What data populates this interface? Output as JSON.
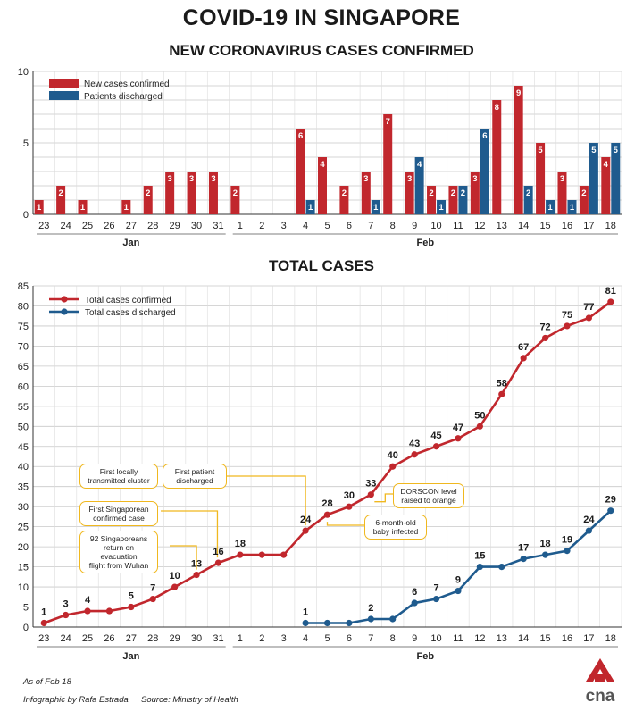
{
  "title": "COVID-19 IN SINGAPORE",
  "subtitle_new": "NEW CORONAVIRUS CASES CONFIRMED",
  "subtitle_total": "TOTAL CASES",
  "colors": {
    "confirmed": "#c1272d",
    "discharged": "#1f5b8e",
    "annotation": "#f0b81f",
    "grid": "#c8c8c8"
  },
  "chart_data": [
    {
      "type": "bar",
      "title": "NEW CORONAVIRUS CASES CONFIRMED",
      "categories": [
        "23",
        "24",
        "25",
        "26",
        "27",
        "28",
        "29",
        "30",
        "31",
        "1",
        "2",
        "3",
        "4",
        "5",
        "6",
        "7",
        "8",
        "9",
        "10",
        "11",
        "12",
        "13",
        "14",
        "15",
        "16",
        "17",
        "18"
      ],
      "month_labels": [
        {
          "label": "Jan",
          "from": 0,
          "to": 8
        },
        {
          "label": "Feb",
          "from": 9,
          "to": 26
        }
      ],
      "series": [
        {
          "name": "New cases confirmed",
          "values": [
            1,
            2,
            1,
            0,
            1,
            2,
            3,
            3,
            3,
            2,
            0,
            0,
            6,
            4,
            2,
            3,
            7,
            3,
            2,
            2,
            3,
            8,
            9,
            5,
            3,
            2,
            4
          ]
        },
        {
          "name": "Patients discharged",
          "values": [
            0,
            0,
            0,
            0,
            0,
            0,
            0,
            0,
            0,
            0,
            0,
            0,
            1,
            0,
            0,
            1,
            0,
            4,
            1,
            2,
            6,
            0,
            2,
            1,
            1,
            5,
            5
          ]
        }
      ],
      "yticks": [
        0,
        5,
        10
      ],
      "ylim": [
        0,
        10
      ],
      "legend": "top-left",
      "grid": true
    },
    {
      "type": "line",
      "title": "TOTAL CASES",
      "categories": [
        "23",
        "24",
        "25",
        "26",
        "27",
        "28",
        "29",
        "30",
        "31",
        "1",
        "2",
        "3",
        "4",
        "5",
        "6",
        "7",
        "8",
        "9",
        "10",
        "11",
        "12",
        "13",
        "14",
        "15",
        "16",
        "17",
        "18"
      ],
      "month_labels": [
        {
          "label": "Jan",
          "from": 0,
          "to": 8
        },
        {
          "label": "Feb",
          "from": 9,
          "to": 26
        }
      ],
      "series": [
        {
          "name": "Total cases confirmed",
          "values": [
            1,
            3,
            4,
            4,
            5,
            7,
            10,
            13,
            16,
            18,
            18,
            18,
            24,
            28,
            30,
            33,
            40,
            43,
            45,
            47,
            50,
            58,
            67,
            72,
            75,
            77,
            81
          ]
        },
        {
          "name": "Total cases discharged",
          "values": [
            null,
            null,
            null,
            null,
            null,
            null,
            null,
            null,
            null,
            null,
            null,
            null,
            1,
            1,
            1,
            2,
            2,
            6,
            7,
            9,
            15,
            15,
            17,
            18,
            19,
            24,
            29
          ]
        }
      ],
      "confirmed_labels": [
        "1",
        "3",
        "4",
        "",
        "5",
        "7",
        "10",
        "13",
        "16",
        "18",
        "",
        "",
        "24",
        "28",
        "30",
        "33",
        "40",
        "43",
        "45",
        "47",
        "50",
        "58",
        "67",
        "72",
        "75",
        "77",
        "81"
      ],
      "discharged_labels": [
        "",
        "",
        "",
        "",
        "",
        "",
        "",
        "",
        "",
        "",
        "",
        "",
        "1",
        "",
        "",
        "2",
        "",
        "6",
        "7",
        "9",
        "15",
        "",
        "17",
        "18",
        "19",
        "24",
        "29"
      ],
      "yticks": [
        0,
        5,
        10,
        15,
        20,
        25,
        30,
        35,
        40,
        45,
        50,
        55,
        60,
        65,
        70,
        75,
        80,
        85
      ],
      "ylim": [
        0,
        85
      ],
      "legend": "top-left",
      "grid": true,
      "annotations": [
        {
          "text_lines": [
            "First locally",
            "transmitted cluster"
          ]
        },
        {
          "text_lines": [
            "First patient",
            "discharged"
          ]
        },
        {
          "text_lines": [
            "First Singaporean",
            "confirmed case"
          ]
        },
        {
          "text_lines": [
            "92 Singaporeans",
            "return on evacuation",
            "flight from Wuhan"
          ]
        },
        {
          "text_lines": [
            "DORSCON level",
            "raised to orange"
          ]
        },
        {
          "text_lines": [
            "6-month-old",
            "baby infected"
          ]
        }
      ]
    }
  ],
  "footer": {
    "as_of": "As of Feb 18",
    "credit": "Infographic by Rafa Estrada",
    "source": "Source: Ministry of Health"
  },
  "logo": {
    "text": "cna"
  }
}
